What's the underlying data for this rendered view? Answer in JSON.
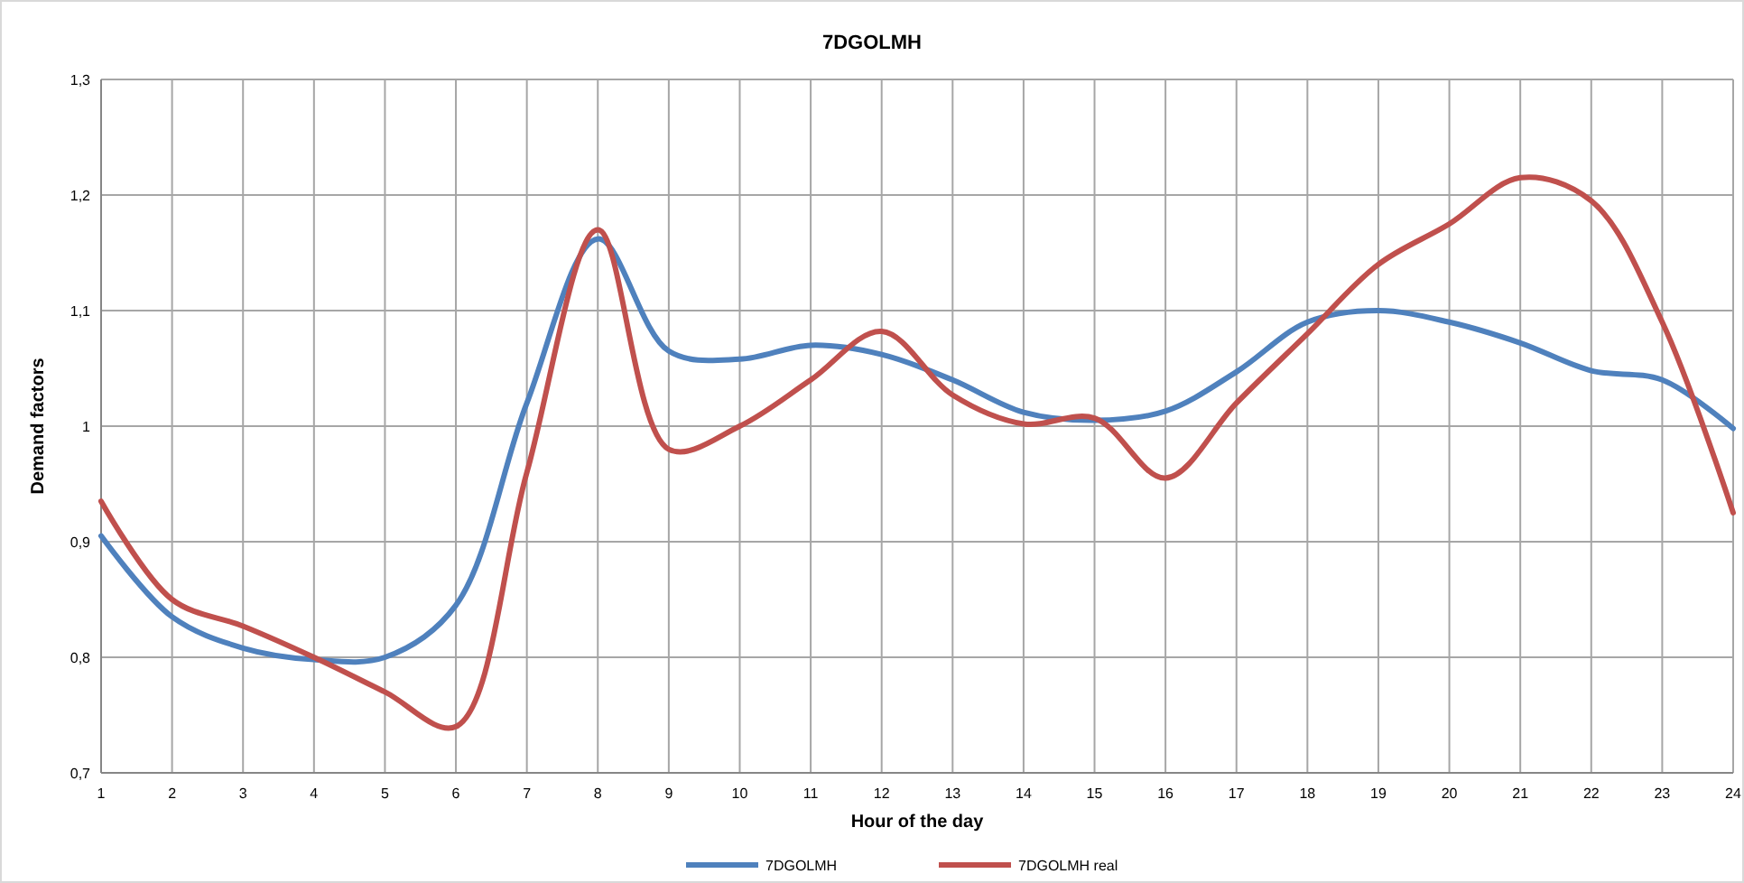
{
  "chart_data": {
    "type": "line",
    "title": "7DGOLMH",
    "xlabel": "Hour of the day",
    "ylabel": "Demand factors",
    "x": [
      1,
      2,
      3,
      4,
      5,
      6,
      7,
      8,
      9,
      10,
      11,
      12,
      13,
      14,
      15,
      16,
      17,
      18,
      19,
      20,
      21,
      22,
      23,
      24
    ],
    "xlim": [
      1,
      24
    ],
    "xticks": [
      1,
      2,
      3,
      4,
      5,
      6,
      7,
      8,
      9,
      10,
      11,
      12,
      13,
      14,
      15,
      16,
      17,
      18,
      19,
      20,
      21,
      22,
      23,
      24
    ],
    "ylim": [
      0.7,
      1.3
    ],
    "yticks": [
      {
        "value": 0.7,
        "label": "0,7"
      },
      {
        "value": 0.8,
        "label": "0,8"
      },
      {
        "value": 0.9,
        "label": "0,9"
      },
      {
        "value": 1,
        "label": "1"
      },
      {
        "value": 1.1,
        "label": "1,1"
      },
      {
        "value": 1.2,
        "label": "1,2"
      },
      {
        "value": 1.3,
        "label": "1,3"
      }
    ],
    "grid": true,
    "legend": "bottom",
    "marker": "none",
    "line_style": "solid",
    "series": [
      {
        "name": "7DGOLMH",
        "color": "#4f81bd",
        "values": [
          0.905,
          0.835,
          0.808,
          0.798,
          0.8,
          0.845,
          1.02,
          1.162,
          1.065,
          1.058,
          1.07,
          1.062,
          1.04,
          1.012,
          1.005,
          1.013,
          1.047,
          1.09,
          1.1,
          1.09,
          1.072,
          1.048,
          1.04,
          0.998
        ]
      },
      {
        "name": "7DGOLMH real",
        "color": "#c0504d",
        "values": [
          0.935,
          0.85,
          0.827,
          0.8,
          0.77,
          0.74,
          0.96,
          1.17,
          0.98,
          1.0,
          1.04,
          1.082,
          1.027,
          1.002,
          1.007,
          0.955,
          1.02,
          1.08,
          1.14,
          1.175,
          1.215,
          1.195,
          1.09,
          0.925
        ]
      }
    ]
  }
}
